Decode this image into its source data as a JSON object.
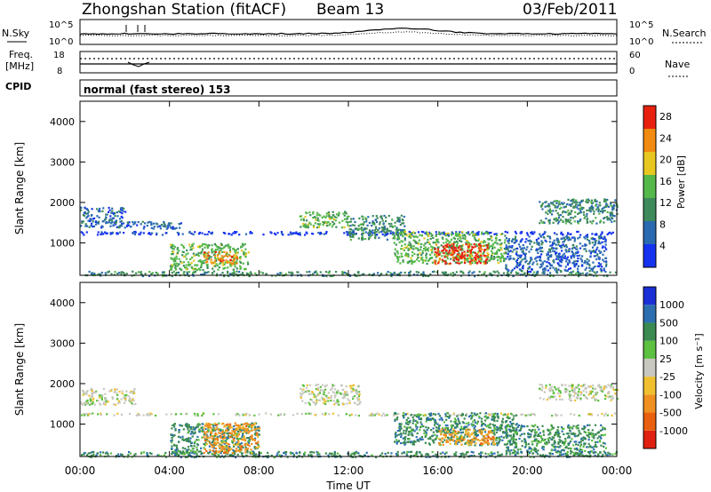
{
  "header": {
    "station": "Zhongshan Station (fitACF)",
    "beam": "Beam 13",
    "date": "03/Feb/2011"
  },
  "strip1": {
    "left_label": "N.Sky",
    "left_ticks": [
      "10^5",
      "10^0"
    ],
    "right_ticks": [
      "10^5",
      "10^0"
    ],
    "right_label": "N.Search"
  },
  "strip2": {
    "left_label_1": "Freq.",
    "left_label_2": "[MHz]",
    "left_ticks": [
      "18",
      "8"
    ],
    "right_ticks": [
      "60",
      "0"
    ],
    "right_label": "Nave"
  },
  "strip3": {
    "left_label": "CPID",
    "mode_text": "normal (fast stereo) 153"
  },
  "x_axis": {
    "label": "Time UT",
    "ticks": [
      "00:00",
      "04:00",
      "08:00",
      "12:00",
      "16:00",
      "20:00",
      "00:00"
    ]
  },
  "colors": {
    "power": [
      "#1432f0",
      "#2a6ab0",
      "#3e8a5a",
      "#55b84a",
      "#e8c820",
      "#f08a10",
      "#e82010"
    ],
    "velocity": [
      "#1a2fd6",
      "#2c6fb0",
      "#3a8a52",
      "#5cc040",
      "#c8c8c0",
      "#f0c030",
      "#f09020",
      "#e86010",
      "#e02010"
    ]
  },
  "chart_data": [
    {
      "type": "heatmap",
      "ylabel": "Slant Range [km]",
      "yticks": [
        "1000",
        "2000",
        "3000",
        "4000"
      ],
      "ylim": [
        200,
        4500
      ],
      "xlim_hours": [
        0,
        24
      ],
      "colorbar": {
        "label": "Power [dB]",
        "ticks": [
          "4",
          "8",
          "12",
          "16",
          "20",
          "24",
          "28"
        ],
        "range": [
          0,
          30
        ]
      },
      "features": [
        {
          "t0": 0.0,
          "t1": 2.0,
          "r0": 1400,
          "r1": 1900,
          "level": 1
        },
        {
          "t0": 2.0,
          "t1": 4.5,
          "r0": 1350,
          "r1": 1550,
          "level": 1
        },
        {
          "t0": 0.0,
          "t1": 24.0,
          "r0": 1220,
          "r1": 1300,
          "level": 0
        },
        {
          "t0": 0.0,
          "t1": 24.0,
          "r0": 200,
          "r1": 320,
          "level": 2
        },
        {
          "t0": 4.0,
          "t1": 7.5,
          "r0": 350,
          "r1": 1000,
          "level": 3
        },
        {
          "t0": 5.5,
          "t1": 7.0,
          "r0": 500,
          "r1": 800,
          "level": 5
        },
        {
          "t0": 9.8,
          "t1": 12.0,
          "r0": 1400,
          "r1": 1800,
          "level": 3
        },
        {
          "t0": 12.0,
          "t1": 14.5,
          "r0": 1100,
          "r1": 1700,
          "level": 2
        },
        {
          "t0": 14.0,
          "t1": 19.0,
          "r0": 500,
          "r1": 1300,
          "level": 3
        },
        {
          "t0": 15.8,
          "t1": 18.2,
          "r0": 500,
          "r1": 1000,
          "level": 6
        },
        {
          "t0": 19.0,
          "t1": 23.5,
          "r0": 300,
          "r1": 1200,
          "level": 1
        },
        {
          "t0": 20.5,
          "t1": 24.0,
          "r0": 1500,
          "r1": 2100,
          "level": 2
        }
      ]
    },
    {
      "type": "heatmap",
      "ylabel": "Slant Range [km]",
      "yticks": [
        "1000",
        "2000",
        "3000",
        "4000"
      ],
      "ylim": [
        200,
        4500
      ],
      "xlim_hours": [
        0,
        24
      ],
      "colorbar": {
        "label": "Velocity [m s⁻¹]",
        "ticks": [
          "1000",
          "500",
          "100",
          "25",
          "-25",
          "-100",
          "-500",
          "-1000"
        ]
      },
      "features": [
        {
          "t0": 0.0,
          "t1": 2.5,
          "r0": 1500,
          "r1": 1900,
          "level": 4
        },
        {
          "t0": 0.0,
          "t1": 24.0,
          "r0": 1230,
          "r1": 1290,
          "level": 4
        },
        {
          "t0": 0.0,
          "t1": 24.0,
          "r0": 200,
          "r1": 340,
          "level": 2
        },
        {
          "t0": 4.0,
          "t1": 8.0,
          "r0": 300,
          "r1": 1050,
          "level": 2
        },
        {
          "t0": 5.5,
          "t1": 8.0,
          "r0": 300,
          "r1": 1050,
          "level": 6
        },
        {
          "t0": 9.8,
          "t1": 12.5,
          "r0": 1500,
          "r1": 2000,
          "level": 4
        },
        {
          "t0": 14.0,
          "t1": 19.5,
          "r0": 500,
          "r1": 1300,
          "level": 2
        },
        {
          "t0": 16.0,
          "t1": 18.5,
          "r0": 500,
          "r1": 900,
          "level": 6
        },
        {
          "t0": 19.0,
          "t1": 23.5,
          "r0": 300,
          "r1": 1000,
          "level": 2
        },
        {
          "t0": 20.5,
          "t1": 24.0,
          "r0": 1600,
          "r1": 2000,
          "level": 4
        }
      ]
    }
  ]
}
